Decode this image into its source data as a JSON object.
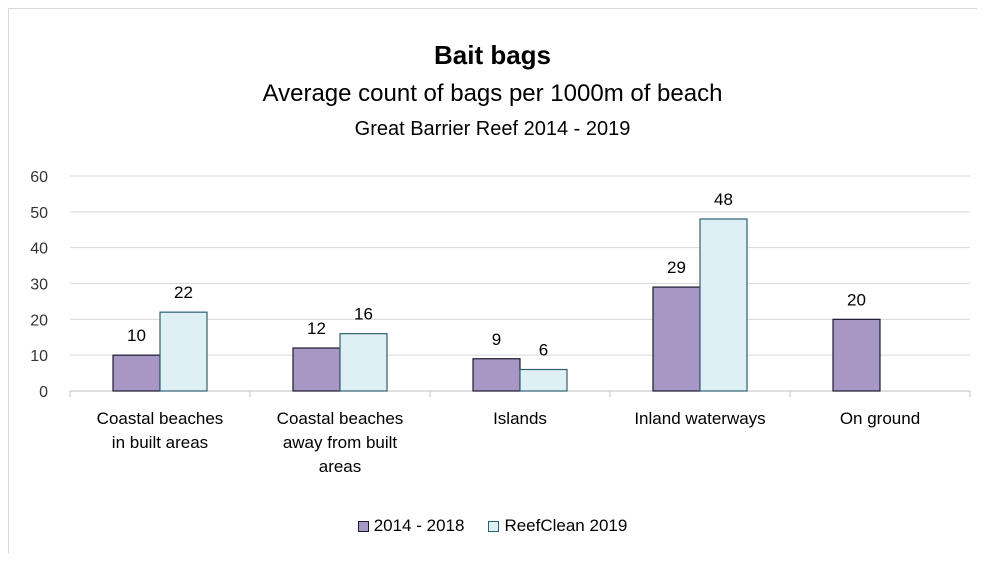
{
  "chart_data": {
    "type": "bar",
    "title": "Bait bags",
    "subtitle": "Average count of bags per 1000m of beach",
    "subtitle2": "Great Barrier Reef 2014 - 2019",
    "categories": [
      [
        "Coastal beaches",
        "in built areas"
      ],
      [
        "Coastal beaches",
        "away from built",
        "areas"
      ],
      [
        "Islands"
      ],
      [
        "Inland waterways"
      ],
      [
        "On ground"
      ]
    ],
    "series": [
      {
        "name": "2014 - 2018",
        "values": [
          10,
          12,
          9,
          29,
          20
        ],
        "color": "#a797c4",
        "border": "#1e1830"
      },
      {
        "name": "ReefClean 2019",
        "values": [
          22,
          16,
          6,
          48,
          null
        ],
        "color": "#dff0f5",
        "border": "#2f5f72"
      }
    ],
    "ylim": [
      0,
      60
    ],
    "yticks": [
      0,
      10,
      20,
      30,
      40,
      50,
      60
    ],
    "grid": true,
    "legend": "bottom"
  }
}
